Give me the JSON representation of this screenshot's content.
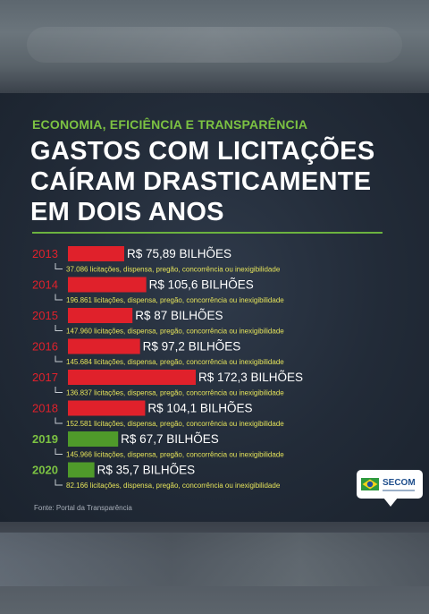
{
  "header": {
    "kicker": "ECONOMIA, EFICIÊNCIA E TRANSPARÊNCIA",
    "title_lines": [
      "GASTOS COM LICITAÇÕES",
      "CAÍRAM DRASTICAMENTE",
      "EM DOIS ANOS"
    ]
  },
  "source": "Fonte: Portal da Transparência",
  "logo": {
    "text": "SECOM",
    "icon": "brazil-flag-icon"
  },
  "colors": {
    "accent_green": "#7cc242",
    "bar_red": "#e0212b",
    "bar_green": "#4f9a2a",
    "year_red": "#e0212b",
    "year_green": "#7cc242",
    "subtitle_yellow": "#e4e25a",
    "value_white": "#ffffff"
  },
  "chart_data": {
    "type": "bar",
    "orientation": "horizontal",
    "categories": [
      "2013",
      "2014",
      "2015",
      "2016",
      "2017",
      "2018",
      "2019",
      "2020"
    ],
    "values": [
      75.89,
      105.6,
      87,
      97.2,
      172.3,
      104.1,
      67.7,
      35.7
    ],
    "value_labels": [
      "R$ 75,89 BILHÕES",
      "R$ 105,6 BILHÕES",
      "R$ 87 BILHÕES",
      "R$ 97,2 BILHÕES",
      "R$ 172,3 BILHÕES",
      "R$ 104,1 BILHÕES",
      "R$ 67,7 BILHÕES",
      "R$ 35,7 BILHÕES"
    ],
    "bar_colors": [
      "#e0212b",
      "#e0212b",
      "#e0212b",
      "#e0212b",
      "#e0212b",
      "#e0212b",
      "#4f9a2a",
      "#4f9a2a"
    ],
    "sublabels": [
      "37.086 licitações, dispensa, pregão, concorrência ou inexigibilidade",
      "196.861 licitações, dispensa, pregão, concorrência ou inexigibilidade",
      "147.960 licitações, dispensa, pregão, concorrência ou inexigibilidade",
      "145.684 licitações, dispensa, pregão, concorrência ou inexigibilidade",
      "136.837 licitações, dispensa, pregão, concorrência ou inexigibilidade",
      "152.581 licitações, dispensa, pregão, concorrência ou inexigibilidade",
      "145.966 licitações, dispensa, pregão, concorrência ou inexigibilidade",
      "82.166 licitações, dispensa, pregão, concorrência ou inexigibilidade"
    ],
    "xlim": [
      0,
      172.3
    ],
    "grid": false,
    "legend": "none"
  }
}
